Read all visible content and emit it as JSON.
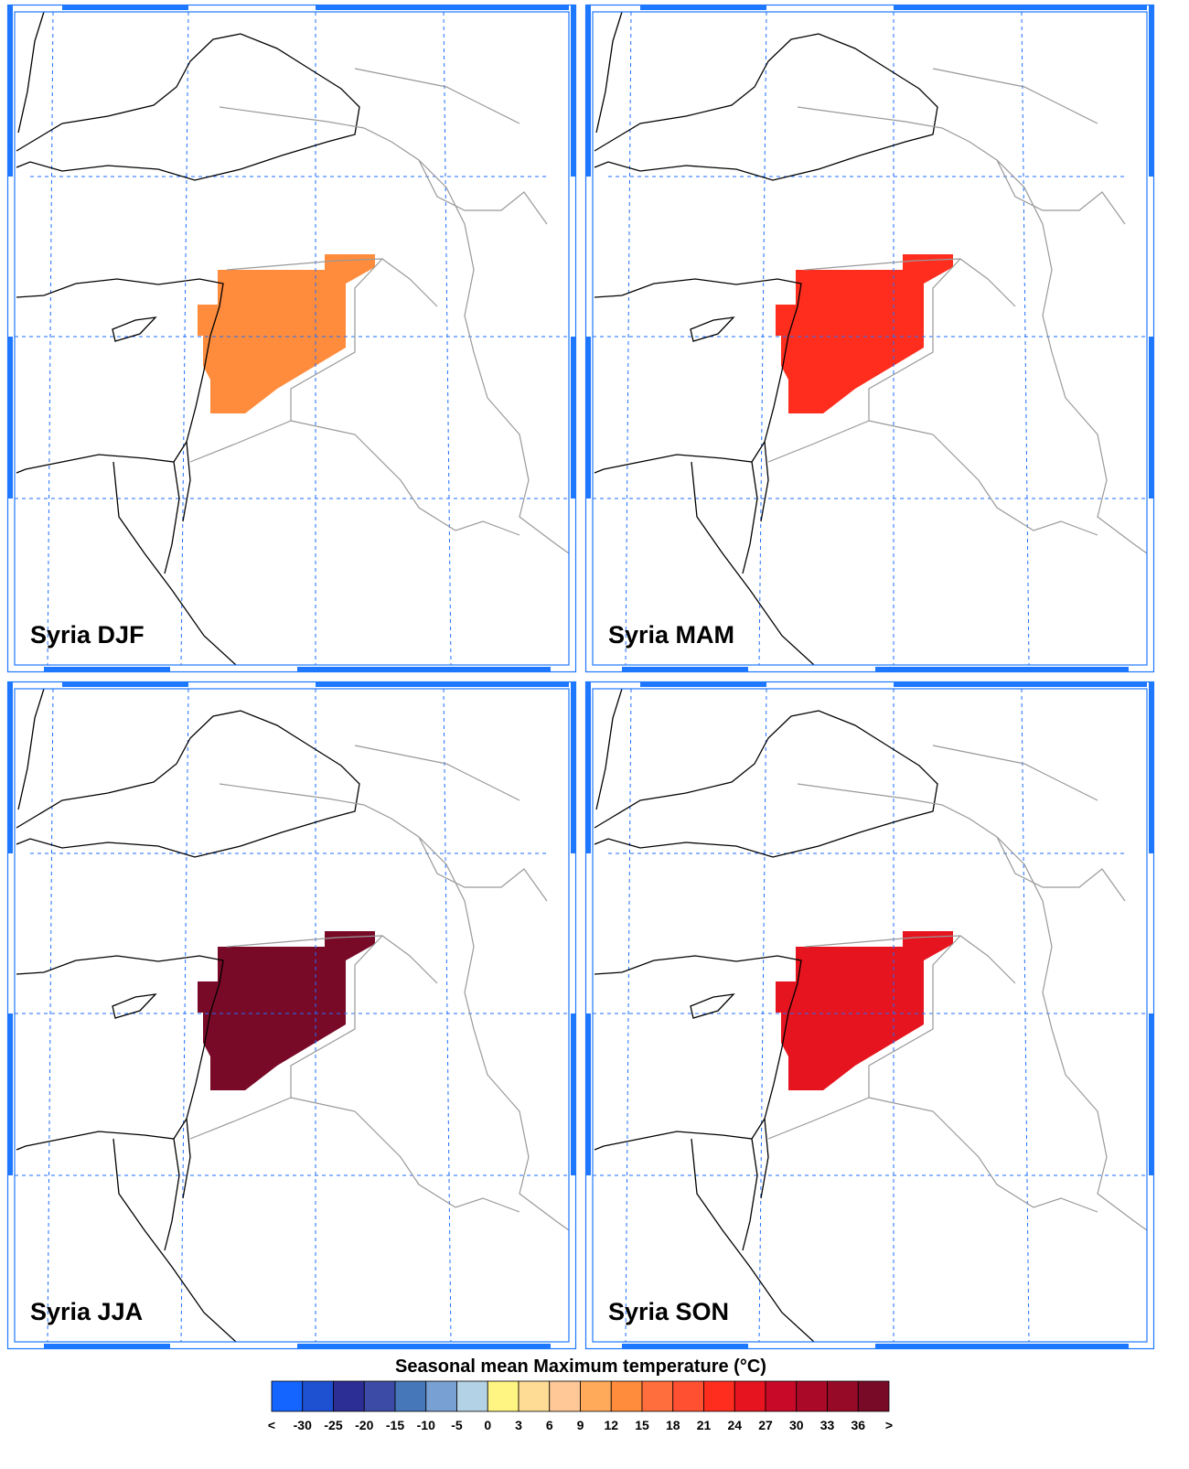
{
  "panels": [
    {
      "label": "Syria DJF",
      "color": "#ff8c3c"
    },
    {
      "label": "Syria MAM",
      "color": "#ff2d1e"
    },
    {
      "label": "Syria JJA",
      "color": "#780a28"
    },
    {
      "label": "Syria SON",
      "color": "#e6141e"
    }
  ],
  "colorbar": {
    "title": "Seasonal mean Maximum temperature (°C)",
    "labels": [
      "<",
      "-30",
      "-25",
      "-20",
      "-15",
      "-10",
      "-5",
      "0",
      "3",
      "6",
      "9",
      "12",
      "15",
      "18",
      "21",
      "24",
      "27",
      "30",
      "33",
      "36",
      ">"
    ],
    "colors": [
      "#1464ff",
      "#1e50d2",
      "#2d2d96",
      "#3c4ba5",
      "#4678b9",
      "#78a0d2",
      "#b4d2e6",
      "#fff582",
      "#ffdc96",
      "#ffc896",
      "#ffaa5a",
      "#ff8c3c",
      "#ff6e3c",
      "#ff5032",
      "#ff2d1e",
      "#e6141e",
      "#c80a28",
      "#aa0a28",
      "#960a28",
      "#780a28"
    ]
  }
}
